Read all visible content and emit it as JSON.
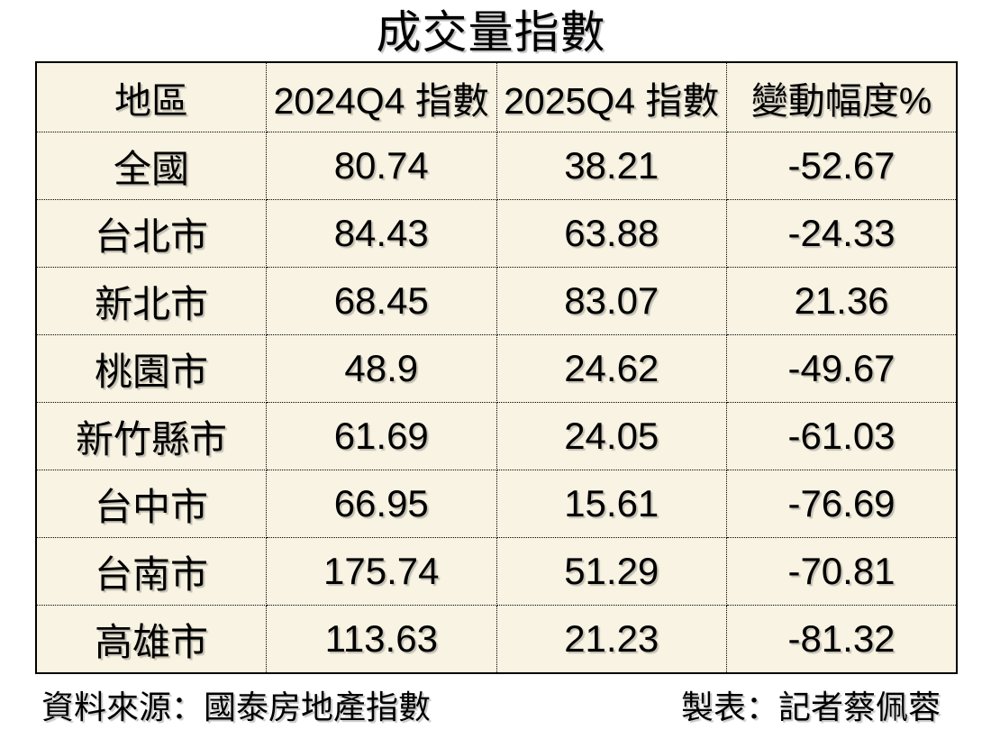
{
  "title": "成交量指數",
  "table": {
    "headers": [
      "地區",
      "2024Q4 指數",
      "2025Q4 指數",
      "變動幅度%"
    ],
    "rows": [
      [
        "全國",
        "80.74",
        "38.21",
        "-52.67"
      ],
      [
        "台北市",
        "84.43",
        "63.88",
        "-24.33"
      ],
      [
        "新北市",
        "68.45",
        "83.07",
        "21.36"
      ],
      [
        "桃園市",
        "48.9",
        "24.62",
        "-49.67"
      ],
      [
        "新竹縣市",
        "61.69",
        "24.05",
        "-61.03"
      ],
      [
        "台中市",
        "66.95",
        "15.61",
        "-76.69"
      ],
      [
        "台南市",
        "175.74",
        "51.29",
        "-70.81"
      ],
      [
        "高雄市",
        "113.63",
        "21.23",
        "-81.32"
      ]
    ]
  },
  "footer": {
    "source": "資料來源：國泰房地產指數",
    "credit": "製表：記者蔡佩蓉"
  },
  "colors": {
    "cell_background": "#f8f3e2",
    "page_background": "#ffffff",
    "border": "#000000",
    "text": "#000000"
  },
  "chart_data": {
    "type": "table",
    "title": "成交量指數",
    "columns": [
      "地區",
      "2024Q4 指數",
      "2025Q4 指數",
      "變動幅度%"
    ],
    "categories": [
      "全國",
      "台北市",
      "新北市",
      "桃園市",
      "新竹縣市",
      "台中市",
      "台南市",
      "高雄市"
    ],
    "series": [
      {
        "name": "2024Q4 指數",
        "values": [
          80.74,
          84.43,
          68.45,
          48.9,
          61.69,
          66.95,
          175.74,
          113.63
        ]
      },
      {
        "name": "2025Q4 指數",
        "values": [
          38.21,
          63.88,
          83.07,
          24.62,
          24.05,
          15.61,
          51.29,
          21.23
        ]
      },
      {
        "name": "變動幅度%",
        "values": [
          -52.67,
          -24.33,
          21.36,
          -49.67,
          -61.03,
          -76.69,
          -70.81,
          -81.32
        ]
      }
    ],
    "source_note": "資料來源：國泰房地產指數",
    "credit_note": "製表：記者蔡佩蓉"
  }
}
